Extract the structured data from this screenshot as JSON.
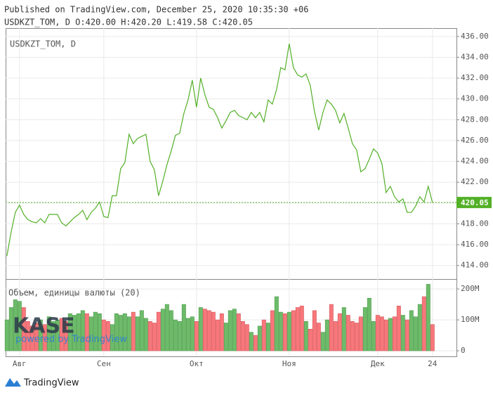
{
  "chart_data": {
    "type": "line",
    "published": "Published on TradingView.com, December 25, 2020 10:35:30 +06",
    "ohlc": "USDKZT_TOM, D O:420.00 H:420.20 L:419.58 C:420.05",
    "legend": "USDKZT_TOM, D",
    "watermark": "KASE",
    "watermark_sub": "powered by TradingView",
    "brand": "TradingView",
    "x": [
      0,
      1,
      2,
      3,
      4,
      5,
      6,
      7,
      8,
      9,
      10,
      11,
      12,
      13,
      14,
      15,
      16,
      17,
      18,
      19,
      20,
      21,
      22,
      23,
      24,
      25,
      26,
      27,
      28,
      29,
      30,
      31,
      32,
      33,
      34,
      35,
      36,
      37,
      38,
      39,
      40,
      41,
      42,
      43,
      44,
      45,
      46,
      47,
      48,
      49,
      50,
      51,
      52,
      53,
      54,
      55,
      56,
      57,
      58,
      59,
      60,
      61,
      62,
      63,
      64,
      65,
      66,
      67,
      68,
      69,
      70,
      71,
      72,
      73,
      74,
      75,
      76,
      77,
      78,
      79,
      80,
      81,
      82,
      83,
      84,
      85,
      86,
      87,
      88,
      89,
      90,
      91,
      92,
      93,
      94,
      95,
      96,
      97,
      98,
      99,
      100,
      101
    ],
    "xlim": [
      -0.3,
      106.7
    ],
    "xticks": [
      {
        "value": 3,
        "label": "Авг"
      },
      {
        "value": 23,
        "label": "Сен"
      },
      {
        "value": 45,
        "label": "Окт"
      },
      {
        "value": 67,
        "label": "Ноя"
      },
      {
        "value": 88,
        "label": "Дек"
      },
      {
        "value": 101,
        "label": "24"
      }
    ],
    "series": [
      {
        "name": "USDKZT_TOM",
        "color": "#52b027",
        "values": [
          414.9,
          417.2,
          419.1,
          419.8,
          418.9,
          418.4,
          418.2,
          418.1,
          418.5,
          418.1,
          418.9,
          418.9,
          418.9,
          418.1,
          417.8,
          418.2,
          418.6,
          418.9,
          419.3,
          418.4,
          419.1,
          419.5,
          420.1,
          418.7,
          418.6,
          420.7,
          420.7,
          423.3,
          423.9,
          426.6,
          425.7,
          426.2,
          426.4,
          426.6,
          424.0,
          423.2,
          420.7,
          422.1,
          423.7,
          425.0,
          426.5,
          426.7,
          428.6,
          429.9,
          431.8,
          429.2,
          432.0,
          430.4,
          429.2,
          429.0,
          428.2,
          427.2,
          427.9,
          428.7,
          428.9,
          428.4,
          428.2,
          428.0,
          428.7,
          428.2,
          428.7,
          427.8,
          429.9,
          429.5,
          430.9,
          433.0,
          432.8,
          435.3,
          433.0,
          432.3,
          432.1,
          432.4,
          431.3,
          428.8,
          427.0,
          428.7,
          429.9,
          429.5,
          428.9,
          427.7,
          428.6,
          427.2,
          425.7,
          425.1,
          423.0,
          423.3,
          424.2,
          425.2,
          424.8,
          423.8,
          421.0,
          421.6,
          420.6,
          420.1,
          420.4,
          419.1,
          419.1,
          419.7,
          420.6,
          420.1,
          421.6,
          420.05
        ]
      }
    ],
    "ylim": [
      412.7,
      436.8
    ],
    "yticks": [
      {
        "value": 414,
        "label": "414.00"
      },
      {
        "value": 416,
        "label": "416.00"
      },
      {
        "value": 418,
        "label": "418.00"
      },
      {
        "value": 420,
        "label": "420.00"
      },
      {
        "value": 422,
        "label": "422.00"
      },
      {
        "value": 424,
        "label": "424.00"
      },
      {
        "value": 426,
        "label": "426.00"
      },
      {
        "value": 428,
        "label": "428.00"
      },
      {
        "value": 430,
        "label": "430.00"
      },
      {
        "value": 432,
        "label": "432.00"
      },
      {
        "value": 434,
        "label": "434.00"
      },
      {
        "value": 436,
        "label": "436.00"
      }
    ],
    "grid": true,
    "volume": {
      "name": "Объем, единицы валюты (20)",
      "color_up": "#6dbb6a",
      "color_down": "#f7777b",
      "values": [
        100,
        140,
        165,
        160,
        140,
        95,
        80,
        90,
        100,
        85,
        110,
        95,
        100,
        105,
        95,
        120,
        115,
        120,
        130,
        120,
        110,
        125,
        120,
        100,
        95,
        85,
        120,
        115,
        120,
        110,
        125,
        110,
        130,
        105,
        95,
        90,
        125,
        135,
        150,
        130,
        100,
        95,
        150,
        105,
        110,
        95,
        140,
        135,
        130,
        125,
        100,
        120,
        90,
        130,
        135,
        120,
        95,
        85,
        60,
        50,
        80,
        100,
        90,
        130,
        175,
        125,
        120,
        125,
        130,
        140,
        145,
        95,
        70,
        130,
        90,
        60,
        100,
        150,
        95,
        120,
        140,
        115,
        95,
        90,
        110,
        140,
        170,
        95,
        115,
        110,
        100,
        105,
        110,
        145,
        115,
        100,
        130,
        110,
        150,
        175,
        215,
        85
      ],
      "ylim": [
        -18,
        232
      ],
      "yticks": [
        0,
        {
          "value": 100,
          "label": "100M"
        },
        {
          "value": 200,
          "label": "200M"
        }
      ]
    }
  }
}
